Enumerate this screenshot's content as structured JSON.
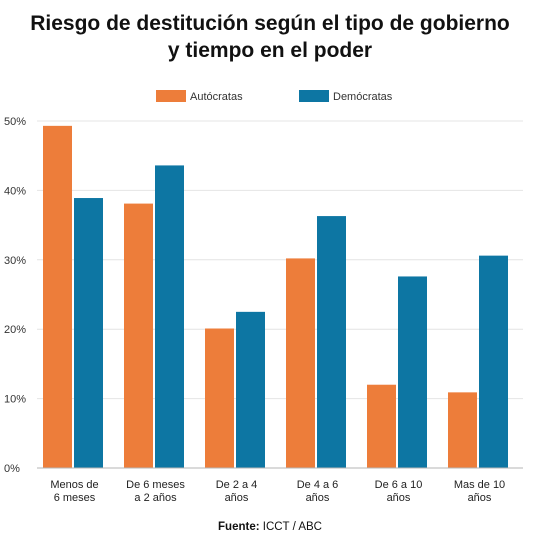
{
  "source": {
    "label": "Fuente:",
    "value": "ICCT / ABC"
  },
  "colors": {
    "autocratas": "#ed7d3a",
    "democratas": "#0d76a3",
    "grid": "#e4e4e4",
    "axis": "#b5b5b5"
  },
  "chart_data": {
    "type": "bar",
    "title": [
      "Riesgo de destitución según el tipo de gobierno",
      "y tiempo en el poder"
    ],
    "xlabel": "",
    "ylabel": "",
    "categories": [
      [
        "Menos de",
        "6 meses"
      ],
      [
        "De 6 meses",
        "a 2 años"
      ],
      [
        "De 2 a 4",
        "años"
      ],
      [
        "De 4 a 6",
        "años"
      ],
      [
        "De 6 a 10",
        "años"
      ],
      [
        "Mas de 10",
        "años"
      ]
    ],
    "series": [
      {
        "name": "Autócratas",
        "values": [
          49.3,
          38.1,
          20.1,
          30.2,
          12.0,
          10.9
        ]
      },
      {
        "name": "Demócratas",
        "values": [
          38.9,
          43.6,
          22.5,
          36.3,
          27.6,
          30.6
        ]
      }
    ],
    "ylim": [
      0,
      50
    ],
    "yticks": [
      "0%",
      "10%",
      "20%",
      "30%",
      "40%",
      "50%"
    ],
    "grid": true,
    "legend": "top-center"
  }
}
